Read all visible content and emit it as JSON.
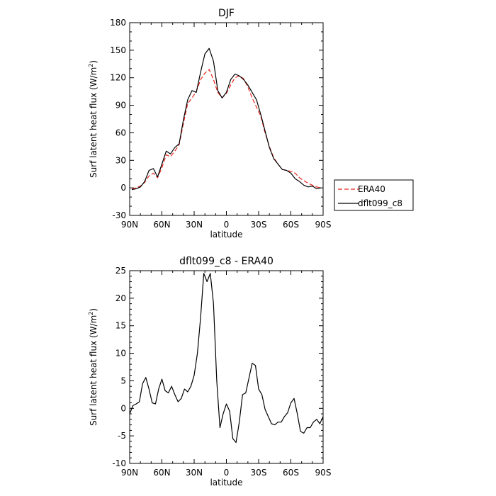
{
  "chart_data": [
    {
      "type": "line",
      "title": "DJF",
      "xlabel": "latitude",
      "ylabel": "Surf latent heat flux (W/m²)",
      "ylabel_main": "Surf latent heat flux (W/m",
      "ylabel_sup": "2",
      "ylabel_close": ")",
      "xlim": [
        90,
        -90
      ],
      "ylim": [
        -30,
        180
      ],
      "x_ticks": [
        90,
        60,
        30,
        0,
        -30,
        -60,
        -90
      ],
      "x_tick_labels": [
        "90N",
        "60N",
        "30N",
        "0",
        "30S",
        "60S",
        "90S"
      ],
      "y_ticks": [
        -30,
        0,
        30,
        60,
        90,
        120,
        150,
        180
      ],
      "y_tick_labels": [
        "-30",
        "0",
        "30",
        "60",
        "90",
        "120",
        "150",
        "180"
      ],
      "legend": {
        "position": "right",
        "entries": [
          "ERA40",
          "dflt099_c8"
        ]
      },
      "series": [
        {
          "name": "ERA40",
          "color": "#e8251f",
          "dash": "dashed",
          "x": [
            88,
            84,
            80,
            76,
            72,
            68,
            64,
            60,
            56,
            52,
            48,
            44,
            40,
            36,
            32,
            28,
            24,
            20,
            16,
            12,
            8,
            4,
            0,
            -4,
            -8,
            -12,
            -16,
            -20,
            -24,
            -28,
            -32,
            -36,
            -40,
            -44,
            -48,
            -52,
            -56,
            -60,
            -64,
            -68,
            -72,
            -76,
            -80,
            -84,
            -88
          ],
          "y": [
            -1,
            0,
            2,
            6,
            13,
            16,
            11,
            22,
            36,
            34,
            40,
            47,
            70,
            92,
            98,
            105,
            118,
            125,
            129,
            118,
            104,
            98,
            103,
            112,
            120,
            122,
            119,
            110,
            98,
            88,
            78,
            60,
            45,
            33,
            26,
            20,
            19,
            18,
            16,
            11,
            8,
            5,
            3,
            1,
            0
          ]
        },
        {
          "name": "dflt099_c8",
          "color": "#000000",
          "dash": "solid",
          "x": [
            88,
            84,
            80,
            76,
            72,
            68,
            64,
            60,
            56,
            52,
            48,
            44,
            40,
            36,
            32,
            28,
            24,
            20,
            16,
            12,
            8,
            4,
            0,
            -4,
            -8,
            -12,
            -16,
            -20,
            -24,
            -28,
            -32,
            -36,
            -40,
            -44,
            -48,
            -52,
            -56,
            -60,
            -64,
            -68,
            -72,
            -76,
            -80,
            -84,
            -88
          ],
          "y": [
            -2,
            -1,
            1,
            7,
            19,
            21,
            12,
            26,
            40,
            37,
            44,
            48,
            74,
            96,
            106,
            104,
            126,
            146,
            152,
            138,
            106,
            98,
            104,
            118,
            124,
            122,
            118,
            112,
            104,
            96,
            80,
            62,
            44,
            32,
            26,
            20,
            19,
            16,
            10,
            7,
            3,
            1,
            2,
            -1,
            0
          ]
        }
      ]
    },
    {
      "type": "line",
      "title": "dflt099_c8 - ERA40",
      "xlabel": "latitude",
      "ylabel": "Surf latent heat flux (W/m²)",
      "ylabel_main": "Surf latent heat flux (W/m",
      "ylabel_sup": "2",
      "ylabel_close": ")",
      "xlim": [
        90,
        -90
      ],
      "ylim": [
        -10,
        25
      ],
      "x_ticks": [
        90,
        60,
        30,
        0,
        -30,
        -60,
        -90
      ],
      "x_tick_labels": [
        "90N",
        "60N",
        "30N",
        "0",
        "30S",
        "60S",
        "90S"
      ],
      "y_ticks": [
        -10,
        -5,
        0,
        5,
        10,
        15,
        20,
        25
      ],
      "y_tick_labels": [
        "-10",
        "-5",
        "0",
        "5",
        "10",
        "15",
        "20",
        "25"
      ],
      "series": [
        {
          "color": "#000000",
          "dash": "solid",
          "x": [
            90,
            87,
            84,
            81,
            78,
            75,
            72,
            69,
            66,
            63,
            60,
            57,
            54,
            51,
            48,
            45,
            42,
            39,
            36,
            33,
            30,
            27,
            24,
            21,
            18,
            15,
            12,
            9,
            6,
            3,
            0,
            -3,
            -6,
            -9,
            -12,
            -15,
            -18,
            -21,
            -24,
            -27,
            -30,
            -33,
            -36,
            -39,
            -42,
            -45,
            -48,
            -51,
            -54,
            -57,
            -60,
            -63,
            -66,
            -69,
            -72,
            -75,
            -78,
            -81,
            -84,
            -87,
            -90
          ],
          "y": [
            -1,
            0.5,
            0.8,
            1.2,
            4.5,
            5.6,
            3.5,
            1,
            0.8,
            3.5,
            5.3,
            3.2,
            2.8,
            4,
            2.5,
            1.2,
            1.8,
            3.5,
            3,
            4,
            6,
            10,
            16.5,
            24.5,
            23,
            24.5,
            19,
            5,
            -3.5,
            -1,
            0.8,
            -0.5,
            -5.5,
            -6.2,
            -2.5,
            2.5,
            2.8,
            5.5,
            8.2,
            7.8,
            3.5,
            2.5,
            -0.2,
            -1.5,
            -2.8,
            -3,
            -2.5,
            -2.5,
            -1.5,
            -0.8,
            1,
            1.8,
            -1,
            -4.2,
            -4.5,
            -3.5,
            -3.5,
            -2.5,
            -2,
            -2.8,
            -1.5
          ]
        }
      ]
    }
  ]
}
